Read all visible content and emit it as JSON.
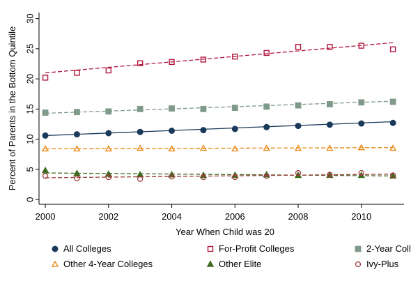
{
  "chart_data": {
    "type": "scatter",
    "xlabel": "Year When Child was 20",
    "ylabel": "Percent of Parents in the Bottom Quintile",
    "xlim": [
      2000,
      2011
    ],
    "ylim": [
      0,
      30
    ],
    "x_ticks": [
      2000,
      2002,
      2004,
      2006,
      2008,
      2010
    ],
    "y_ticks": [
      0,
      5,
      10,
      15,
      20,
      25,
      30
    ],
    "x": [
      2000,
      2001,
      2002,
      2003,
      2004,
      2005,
      2006,
      2007,
      2008,
      2009,
      2010,
      2011
    ],
    "grid": false,
    "legend_position": "bottom",
    "series": [
      {
        "name": "All Colleges",
        "color": "#1a3a5c",
        "marker": "filled-circle",
        "line_style": "solid",
        "values": [
          10.6,
          10.8,
          11.0,
          11.2,
          11.4,
          11.5,
          11.7,
          12.0,
          12.2,
          12.4,
          12.6,
          12.7
        ],
        "fit": [
          10.6,
          12.9
        ]
      },
      {
        "name": "For-Profit Colleges",
        "color": "#b0173d",
        "marker": "hollow-square",
        "line_style": "dashed",
        "values": [
          20.2,
          21.0,
          21.4,
          22.6,
          22.8,
          23.2,
          23.7,
          24.3,
          25.3,
          25.3,
          25.5,
          24.9
        ],
        "fit": [
          21.0,
          26.0
        ]
      },
      {
        "name": "2-Year Colleges",
        "color": "#7f9a8a",
        "marker": "filled-square",
        "line_style": "dashed",
        "values": [
          14.4,
          14.5,
          14.6,
          15.0,
          15.1,
          15.0,
          15.2,
          15.4,
          15.6,
          15.8,
          16.1,
          16.2
        ],
        "fit": [
          14.3,
          16.3
        ]
      },
      {
        "name": "Other 4-Year Colleges",
        "color": "#e8850e",
        "marker": "hollow-triangle",
        "line_style": "dashed",
        "values": [
          8.4,
          8.4,
          8.4,
          8.5,
          8.4,
          8.5,
          8.4,
          8.5,
          8.5,
          8.5,
          8.6,
          8.5
        ],
        "fit": [
          8.4,
          8.6
        ]
      },
      {
        "name": "Other Elite",
        "color": "#3c6b1f",
        "marker": "filled-triangle",
        "line_style": "dashed",
        "values": [
          4.8,
          4.3,
          4.2,
          4.1,
          4.1,
          4.0,
          4.0,
          4.1,
          4.0,
          4.0,
          4.0,
          3.9
        ],
        "fit": [
          4.4,
          3.9
        ]
      },
      {
        "name": "Ivy-Plus",
        "color": "#9e3c3c",
        "marker": "hollow-circle",
        "line_style": "dashed",
        "values": [
          3.9,
          3.5,
          3.7,
          3.4,
          3.8,
          3.7,
          3.7,
          3.9,
          4.4,
          4.1,
          4.4,
          4.0
        ],
        "fit": [
          3.6,
          4.2
        ]
      }
    ],
    "legend_items": [
      {
        "label": "All Colleges",
        "series": 0
      },
      {
        "label": "For-Profit Colleges",
        "series": 1
      },
      {
        "label": "2-Year Colleges",
        "series": 2
      },
      {
        "label": "Other 4-Year Colleges",
        "series": 3
      },
      {
        "label": "Other Elite",
        "series": 4
      },
      {
        "label": "Ivy-Plus",
        "series": 5
      }
    ]
  }
}
